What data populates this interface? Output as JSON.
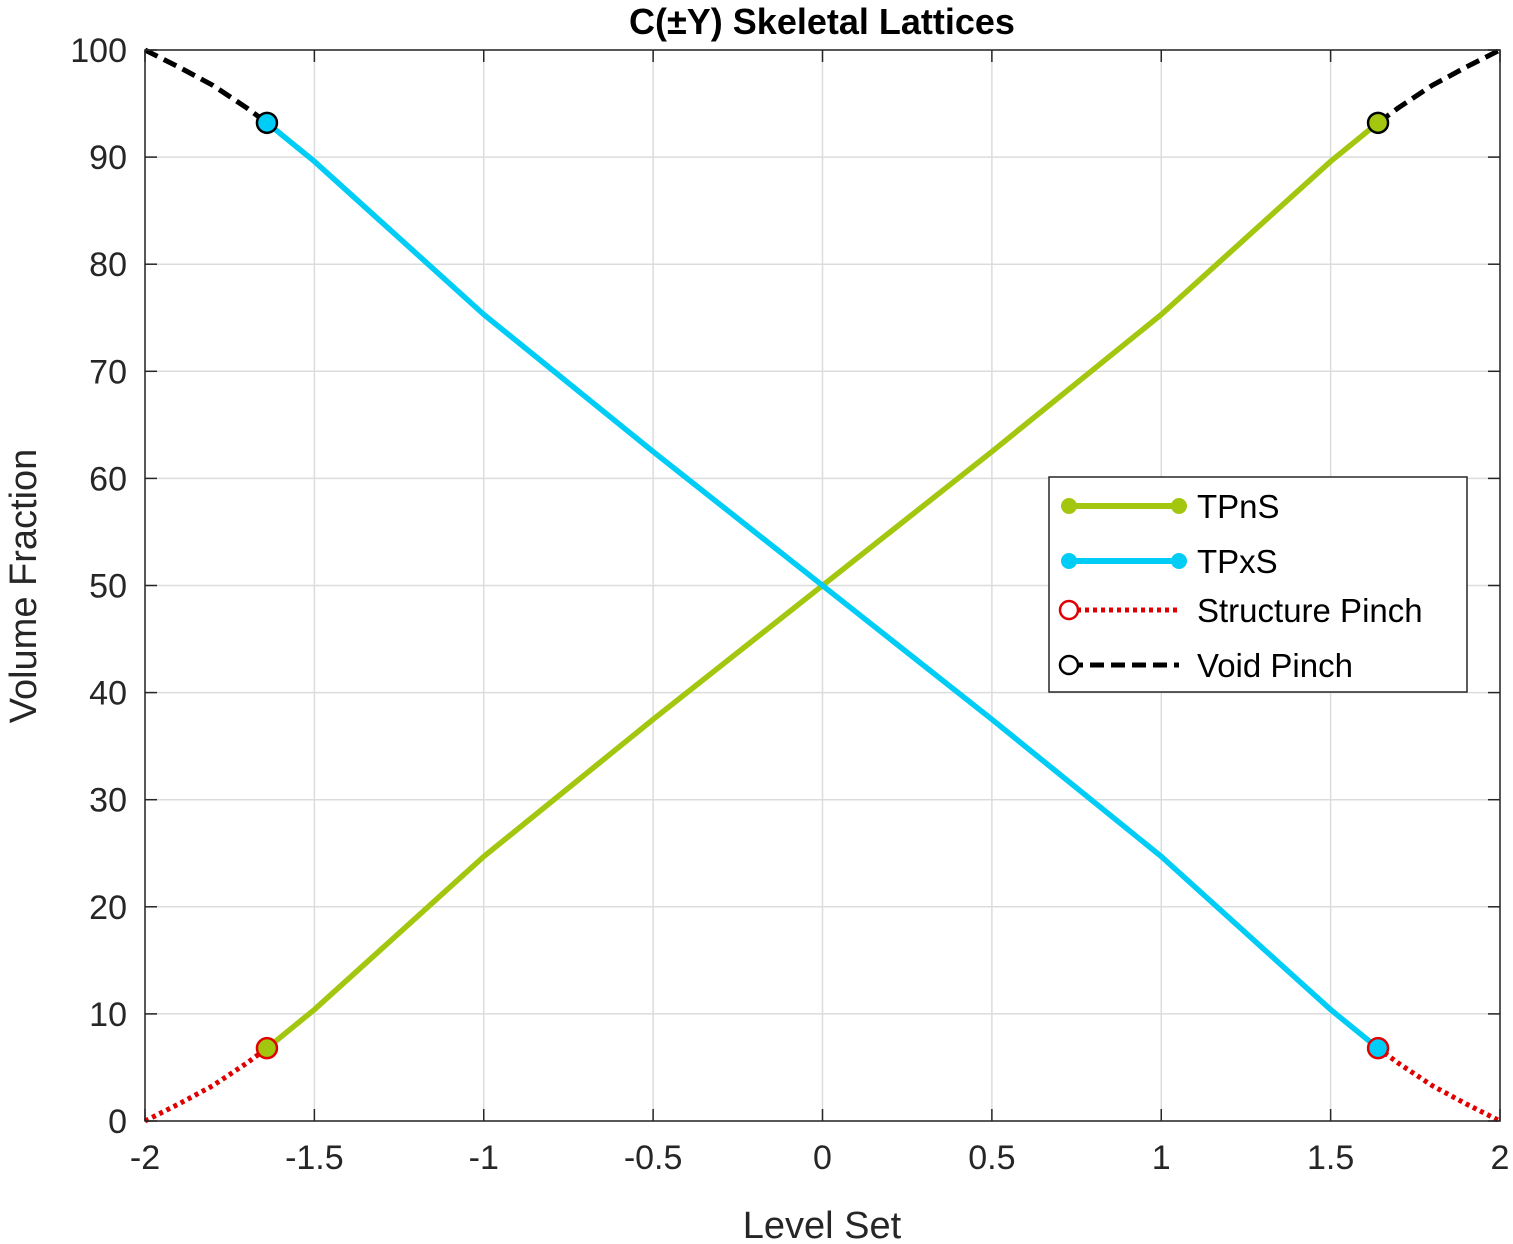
{
  "chart_data": {
    "type": "line",
    "title": "C(±Y) Skeletal Lattices",
    "xlabel": "Level Set",
    "ylabel": "Volume Fraction",
    "xlim": [
      -2,
      2
    ],
    "ylim": [
      0,
      100
    ],
    "xticks": [
      -2,
      -1.5,
      -1,
      -0.5,
      0,
      0.5,
      1,
      1.5,
      2
    ],
    "yticks": [
      0,
      10,
      20,
      30,
      40,
      50,
      60,
      70,
      80,
      90,
      100
    ],
    "xtick_labels": [
      "-2",
      "-1.5",
      "-1",
      "-0.5",
      "0",
      "0.5",
      "1",
      "1.5",
      "2"
    ],
    "ytick_labels": [
      "0",
      "10",
      "20",
      "30",
      "40",
      "50",
      "60",
      "70",
      "80",
      "90",
      "100"
    ],
    "grid": true,
    "legend_position": "right-center",
    "series": [
      {
        "name": "TPnS",
        "color": "#a3c60f",
        "style": "solid",
        "marker": "filled-circle",
        "x": [
          -1.64,
          -1.5,
          -1.0,
          -0.5,
          0,
          0.5,
          1.0,
          1.5,
          1.64
        ],
        "y": [
          6.8,
          10.4,
          24.7,
          37.5,
          50,
          62.5,
          75.3,
          89.6,
          93.2
        ]
      },
      {
        "name": "TPxS",
        "color": "#00cdf5",
        "style": "solid",
        "marker": "filled-circle",
        "x": [
          -1.64,
          -1.5,
          -1.0,
          -0.5,
          0,
          0.5,
          1.0,
          1.5,
          1.64
        ],
        "y": [
          93.2,
          89.6,
          75.3,
          62.5,
          50,
          37.5,
          24.7,
          10.4,
          6.8
        ]
      },
      {
        "name": "Structure Pinch",
        "color": "#e00000",
        "style": "dotted",
        "marker": "open-circle",
        "segments": [
          {
            "x": [
              -2.0,
              -1.9,
              -1.8,
              -1.7,
              -1.64
            ],
            "y": [
              0,
              1.6,
              3.3,
              5.4,
              6.8
            ]
          },
          {
            "x": [
              1.64,
              1.7,
              1.8,
              1.9,
              2.0
            ],
            "y": [
              6.8,
              5.4,
              3.3,
              1.6,
              0
            ]
          }
        ]
      },
      {
        "name": "Void Pinch",
        "color": "#000000",
        "style": "dashed",
        "marker": "open-circle",
        "segments": [
          {
            "x": [
              -2.0,
              -1.9,
              -1.8,
              -1.7,
              -1.64
            ],
            "y": [
              100,
              98.4,
              96.7,
              94.6,
              93.2
            ]
          },
          {
            "x": [
              1.64,
              1.7,
              1.8,
              1.9,
              2.0
            ],
            "y": [
              93.2,
              94.6,
              96.7,
              98.4,
              100
            ]
          }
        ]
      }
    ],
    "pinch_points": [
      {
        "x": -1.64,
        "y": 93.2,
        "fill": "#00cdf5"
      },
      {
        "x": 1.64,
        "y": 93.2,
        "fill": "#a3c60f"
      },
      {
        "x": -1.64,
        "y": 6.8,
        "fill": "#a3c60f"
      },
      {
        "x": 1.64,
        "y": 6.8,
        "fill": "#00cdf5"
      }
    ]
  }
}
